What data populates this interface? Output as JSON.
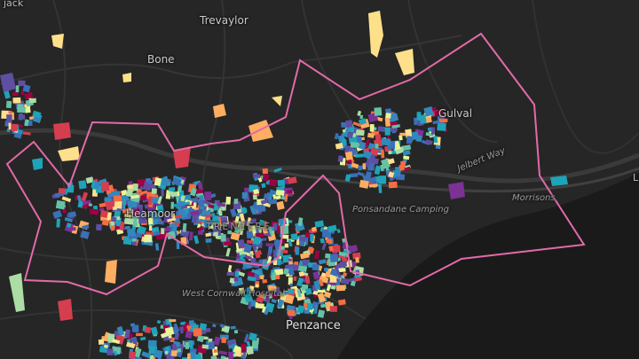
{
  "map": {
    "background": "#262626",
    "sea_color": "#1a1a1a",
    "boundary_color": "#e26aa8",
    "palette": [
      "#5e4fa2",
      "#3b6fb6",
      "#3288bd",
      "#1fa3b8",
      "#66c2a5",
      "#abdda4",
      "#e6f598",
      "#fee08b",
      "#fdae61",
      "#f46d43",
      "#d53e4f",
      "#9e0142",
      "#7b3294"
    ],
    "labels": {
      "jack": "jack",
      "trevaylor": "Trevaylor",
      "bone": "Bone",
      "gulval": "Gulval",
      "jelbert_way": "Jelbert Way",
      "heamoor": "Heamoor",
      "ponsandane": "Ponsandane Camping",
      "morrisons": "Morrisons",
      "treneere": "TRENEERE",
      "hospital": "West Cornwall Hospital",
      "penzance": "Penzance",
      "edge_l": "L"
    }
  }
}
